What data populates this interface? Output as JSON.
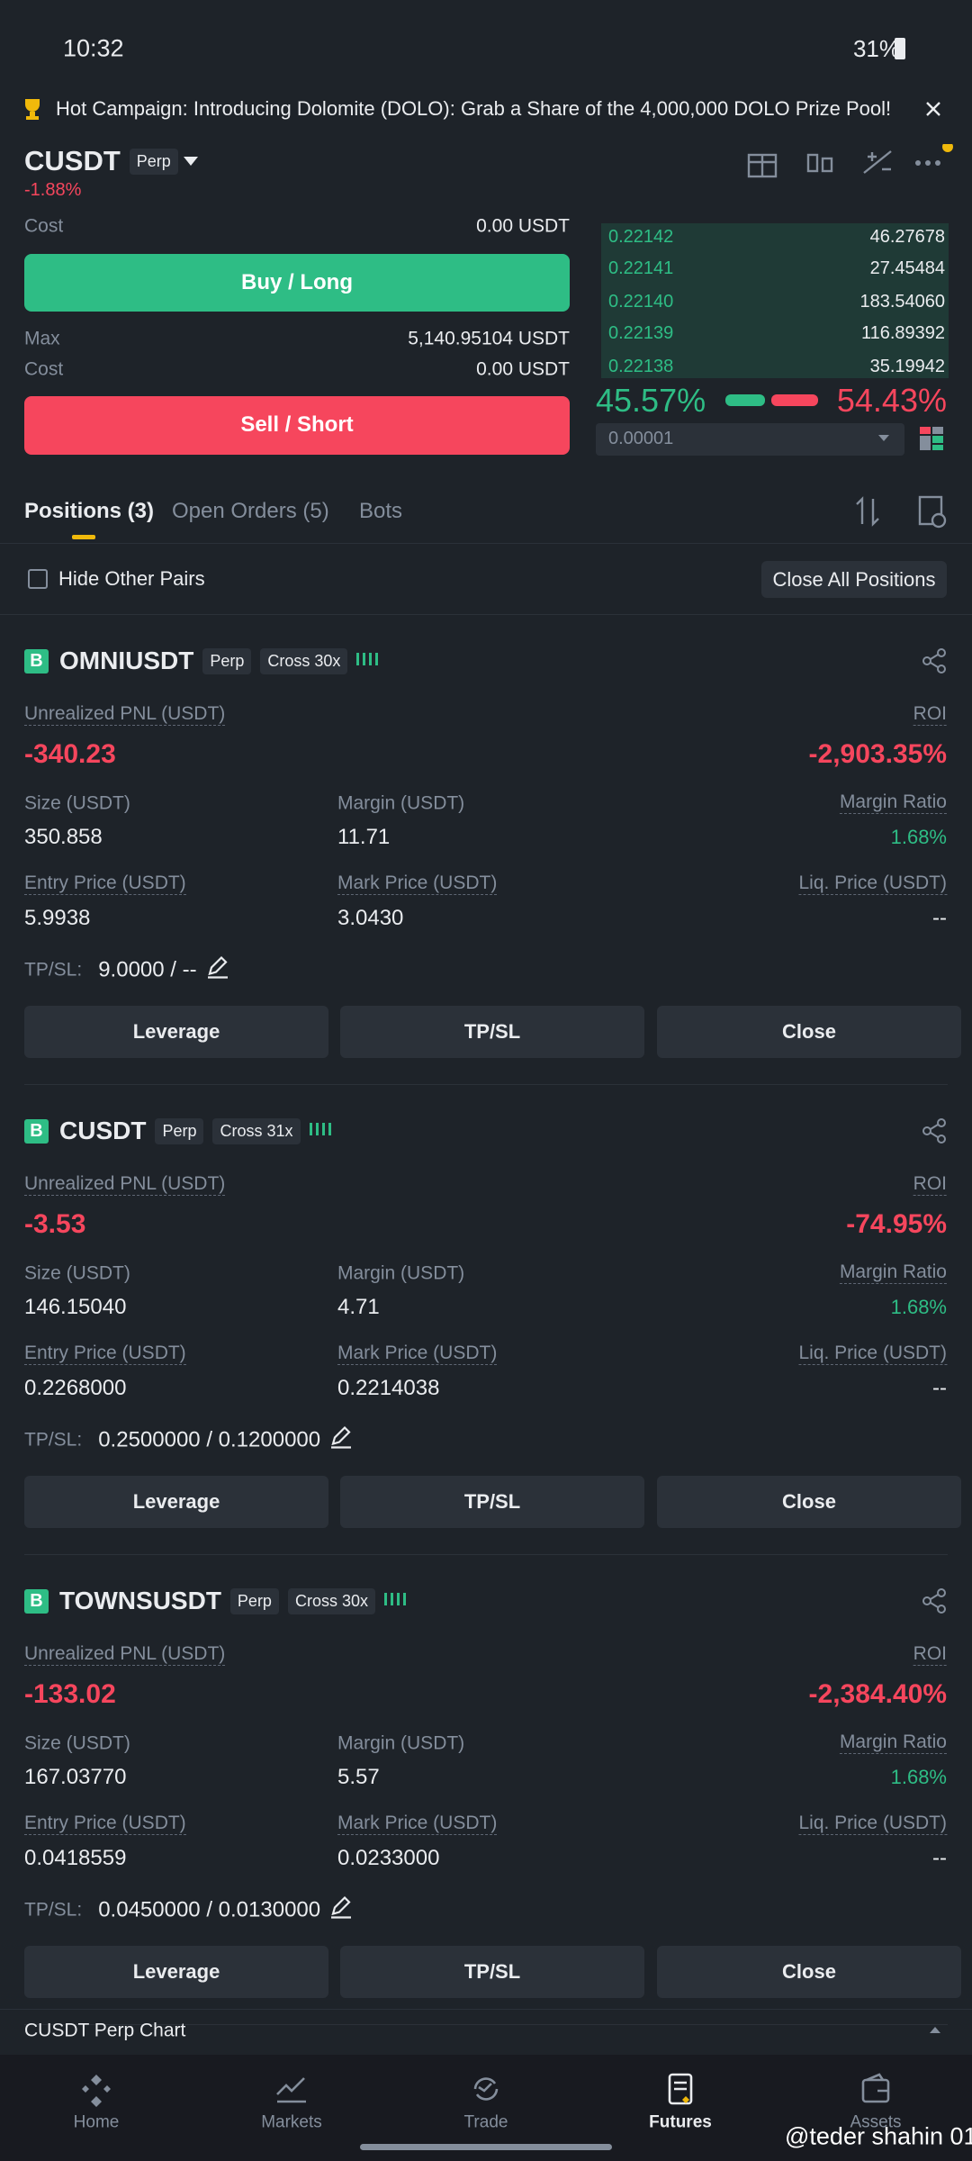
{
  "status_bar": {
    "time": "10:32",
    "battery": "31%"
  },
  "banner": {
    "text": "Hot Campaign: Introducing Dolomite (DOLO): Grab a Share of the 4,000,000 DOLO Prize Pool!"
  },
  "header": {
    "symbol": "CUSDT",
    "badge": "Perp",
    "change": "-1.88%"
  },
  "order_form": {
    "cost_top_label": "Cost",
    "cost_top_value": "0.00 USDT",
    "buy": "Buy / Long",
    "max_label": "Max",
    "max_value": "5,140.95104 USDT",
    "cost_label": "Cost",
    "cost_value": "0.00 USDT",
    "sell": "Sell / Short"
  },
  "order_book": {
    "rows": [
      [
        "0.22142",
        "46.27678"
      ],
      [
        "0.22141",
        "27.45484"
      ],
      [
        "0.22140",
        "183.54060"
      ],
      [
        "0.22139",
        "116.89392"
      ],
      [
        "0.22138",
        "35.19942"
      ]
    ],
    "buy_ratio": "45.57%",
    "sell_ratio": "54.43%",
    "tick_size": "0.00001"
  },
  "tabs": [
    "Positions (3)",
    "Open Orders (5)",
    "Bots"
  ],
  "toolbar": {
    "hide_pairs": "Hide Other Pairs",
    "close_all": "Close All Positions"
  },
  "positions": [
    {
      "side": "B",
      "symbol": "OMNIUSDT",
      "type": "Perp",
      "mode": "Cross 30x",
      "pnl_label": "Unrealized PNL (USDT)",
      "pnl": "-340.23",
      "roi_label": "ROI",
      "roi": "-2,903.35%",
      "size_label": "Size (USDT)",
      "size": "350.858",
      "margin_label": "Margin (USDT)",
      "margin": "11.71",
      "ratio_label": "Margin Ratio",
      "ratio": "1.68%",
      "entry_label": "Entry Price (USDT)",
      "entry": "5.9938",
      "mark_label": "Mark Price (USDT)",
      "mark": "3.0430",
      "liq_label": "Liq. Price (USDT)",
      "liq": "--",
      "tpsl_label": "TP/SL:",
      "tpsl": "9.0000 / --",
      "buttons": [
        "Leverage",
        "TP/SL",
        "Close"
      ]
    },
    {
      "side": "B",
      "symbol": "CUSDT",
      "type": "Perp",
      "mode": "Cross 31x",
      "pnl_label": "Unrealized PNL (USDT)",
      "pnl": "-3.53",
      "roi_label": "ROI",
      "roi": "-74.95%",
      "size_label": "Size (USDT)",
      "size": "146.15040",
      "margin_label": "Margin (USDT)",
      "margin": "4.71",
      "ratio_label": "Margin Ratio",
      "ratio": "1.68%",
      "entry_label": "Entry Price (USDT)",
      "entry": "0.2268000",
      "mark_label": "Mark Price (USDT)",
      "mark": "0.2214038",
      "liq_label": "Liq. Price (USDT)",
      "liq": "--",
      "tpsl_label": "TP/SL:",
      "tpsl": "0.2500000 / 0.1200000",
      "buttons": [
        "Leverage",
        "TP/SL",
        "Close"
      ]
    },
    {
      "side": "B",
      "symbol": "TOWNSUSDT",
      "type": "Perp",
      "mode": "Cross 30x",
      "pnl_label": "Unrealized PNL (USDT)",
      "pnl": "-133.02",
      "roi_label": "ROI",
      "roi": "-2,384.40%",
      "size_label": "Size (USDT)",
      "size": "167.03770",
      "margin_label": "Margin (USDT)",
      "margin": "5.57",
      "ratio_label": "Margin Ratio",
      "ratio": "1.68%",
      "entry_label": "Entry Price (USDT)",
      "entry": "0.0418559",
      "mark_label": "Mark Price (USDT)",
      "mark": "0.0233000",
      "liq_label": "Liq. Price (USDT)",
      "liq": "--",
      "tpsl_label": "TP/SL:",
      "tpsl": "0.0450000 / 0.0130000",
      "buttons": [
        "Leverage",
        "TP/SL",
        "Close"
      ]
    }
  ],
  "chart_bar": "CUSDT Perp Chart",
  "nav": [
    "Home",
    "Markets",
    "Trade",
    "Futures",
    "Assets"
  ],
  "watermark": "@teder shahin 01"
}
